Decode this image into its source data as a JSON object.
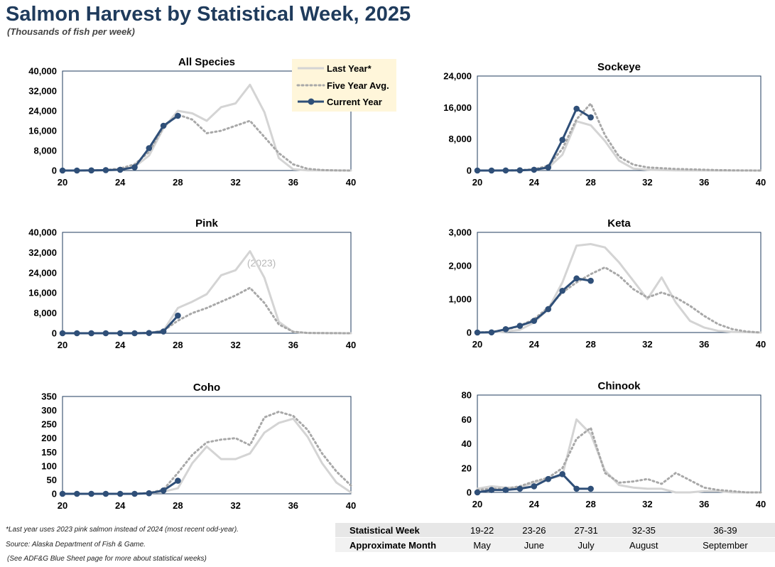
{
  "title": "Salmon Harvest by Statistical Week, 2025",
  "subtitle": "(Thousands of fish per week)",
  "legend": {
    "last_year": "Last Year*",
    "five_year": "Five Year Avg.",
    "current_year": "Current Year"
  },
  "colors": {
    "last_year": "#d4d4d4",
    "five_year": "#a8a8a8",
    "current_year": "#2f4f78",
    "axis": "#1f3b5c",
    "legend_bg": "#fff6da"
  },
  "chart_data": [
    {
      "type": "line",
      "title": "All Species",
      "xlim": [
        20,
        40
      ],
      "ylim": [
        0,
        40000
      ],
      "xticks": [
        "20",
        "24",
        "28",
        "32",
        "36",
        "40"
      ],
      "yticks": [
        "0",
        "8,000",
        "16,000",
        "24,000",
        "32,000",
        "40,000"
      ],
      "series": [
        {
          "name": "Last Year*",
          "x": [
            20,
            21,
            22,
            23,
            24,
            25,
            26,
            27,
            28,
            29,
            30,
            31,
            32,
            33,
            34,
            35,
            36,
            37,
            38,
            39,
            40
          ],
          "values": [
            0,
            0,
            0,
            100,
            400,
            1500,
            6000,
            17000,
            24000,
            23000,
            20000,
            25500,
            27000,
            34500,
            23500,
            5000,
            500,
            100,
            50,
            20,
            0
          ]
        },
        {
          "name": "Five Year Avg.",
          "x": [
            20,
            21,
            22,
            23,
            24,
            25,
            26,
            27,
            28,
            29,
            30,
            31,
            32,
            33,
            34,
            35,
            36,
            37,
            38,
            39,
            40
          ],
          "values": [
            0,
            0,
            0,
            200,
            800,
            2500,
            7500,
            17500,
            22500,
            20500,
            15000,
            16000,
            18000,
            20000,
            13500,
            7000,
            2500,
            700,
            200,
            50,
            0
          ]
        },
        {
          "name": "Current Year",
          "x": [
            20,
            21,
            22,
            23,
            24,
            25,
            26,
            27,
            28
          ],
          "values": [
            0,
            0,
            50,
            150,
            300,
            1300,
            9000,
            18000,
            22000
          ]
        }
      ]
    },
    {
      "type": "line",
      "title": "Sockeye",
      "xlim": [
        20,
        40
      ],
      "ylim": [
        0,
        24000
      ],
      "xticks": [
        "20",
        "24",
        "28",
        "32",
        "36",
        "40"
      ],
      "yticks": [
        "0",
        "8,000",
        "16,000",
        "24,000"
      ],
      "series": [
        {
          "name": "Last Year*",
          "x": [
            20,
            21,
            22,
            23,
            24,
            25,
            26,
            27,
            28,
            29,
            30,
            31,
            32,
            33,
            34,
            35,
            36,
            37,
            38,
            39,
            40
          ],
          "values": [
            0,
            0,
            0,
            50,
            200,
            700,
            4000,
            12500,
            11500,
            7500,
            2500,
            500,
            200,
            100,
            50,
            20,
            10,
            0,
            0,
            0,
            0
          ]
        },
        {
          "name": "Five Year Avg.",
          "x": [
            20,
            21,
            22,
            23,
            24,
            25,
            26,
            27,
            28,
            29,
            30,
            31,
            32,
            33,
            34,
            35,
            36,
            37,
            38,
            39,
            40
          ],
          "values": [
            0,
            0,
            0,
            100,
            300,
            1200,
            5500,
            13000,
            17000,
            9000,
            3500,
            1500,
            800,
            600,
            400,
            300,
            200,
            100,
            50,
            20,
            0
          ]
        },
        {
          "name": "Current Year",
          "x": [
            20,
            21,
            22,
            23,
            24,
            25,
            26,
            27,
            28
          ],
          "values": [
            0,
            0,
            20,
            50,
            200,
            800,
            7800,
            15700,
            13500
          ]
        }
      ]
    },
    {
      "type": "line",
      "title": "Pink",
      "xlim": [
        20,
        40
      ],
      "ylim": [
        0,
        40000
      ],
      "xticks": [
        "20",
        "24",
        "28",
        "32",
        "36",
        "40"
      ],
      "yticks": [
        "0",
        "8,000",
        "16,000",
        "24,000",
        "32,000",
        "40,000"
      ],
      "annotation": "(2023)",
      "series": [
        {
          "name": "Last Year*",
          "x": [
            20,
            21,
            22,
            23,
            24,
            25,
            26,
            27,
            28,
            29,
            30,
            31,
            32,
            33,
            34,
            35,
            36,
            37,
            38,
            39,
            40
          ],
          "values": [
            0,
            0,
            0,
            0,
            0,
            0,
            100,
            1000,
            10000,
            12500,
            15500,
            23000,
            25000,
            32500,
            22000,
            4500,
            500,
            100,
            50,
            20,
            0
          ]
        },
        {
          "name": "Five Year Avg.",
          "x": [
            20,
            21,
            22,
            23,
            24,
            25,
            26,
            27,
            28,
            29,
            30,
            31,
            32,
            33,
            34,
            35,
            36,
            37,
            38,
            39,
            40
          ],
          "values": [
            0,
            0,
            0,
            0,
            0,
            0,
            100,
            1000,
            5000,
            8000,
            10000,
            12500,
            15000,
            18000,
            12000,
            3500,
            600,
            100,
            50,
            20,
            0
          ]
        },
        {
          "name": "Current Year",
          "x": [
            20,
            21,
            22,
            23,
            24,
            25,
            26,
            27,
            28
          ],
          "values": [
            0,
            0,
            0,
            0,
            0,
            0,
            100,
            700,
            7000
          ]
        }
      ]
    },
    {
      "type": "line",
      "title": "Keta",
      "xlim": [
        20,
        40
      ],
      "ylim": [
        0,
        3000
      ],
      "xticks": [
        "20",
        "24",
        "28",
        "32",
        "36",
        "40"
      ],
      "yticks": [
        "0",
        "1,000",
        "2,000",
        "3,000"
      ],
      "series": [
        {
          "name": "Last Year*",
          "x": [
            20,
            21,
            22,
            23,
            24,
            25,
            26,
            27,
            28,
            29,
            30,
            31,
            32,
            33,
            34,
            35,
            36,
            37,
            38,
            39,
            40
          ],
          "values": [
            0,
            10,
            30,
            80,
            300,
            700,
            1500,
            2600,
            2650,
            2550,
            2100,
            1550,
            1000,
            1650,
            900,
            350,
            150,
            50,
            20,
            10,
            0
          ]
        },
        {
          "name": "Five Year Avg.",
          "x": [
            20,
            21,
            22,
            23,
            24,
            25,
            26,
            27,
            28,
            29,
            30,
            31,
            32,
            33,
            34,
            35,
            36,
            37,
            38,
            39,
            40
          ],
          "values": [
            0,
            20,
            80,
            200,
            400,
            750,
            1200,
            1500,
            1750,
            1950,
            1700,
            1300,
            1050,
            1200,
            1050,
            800,
            500,
            250,
            100,
            30,
            0
          ]
        },
        {
          "name": "Current Year",
          "x": [
            20,
            21,
            22,
            23,
            24,
            25,
            26,
            27,
            28
          ],
          "values": [
            0,
            5,
            100,
            200,
            350,
            700,
            1250,
            1620,
            1550
          ]
        }
      ]
    },
    {
      "type": "line",
      "title": "Coho",
      "xlim": [
        20,
        40
      ],
      "ylim": [
        0,
        350
      ],
      "xticks": [
        "20",
        "24",
        "28",
        "32",
        "36",
        "40"
      ],
      "yticks": [
        "0",
        "50",
        "100",
        "150",
        "200",
        "250",
        "300",
        "350"
      ],
      "series": [
        {
          "name": "Last Year*",
          "x": [
            20,
            21,
            22,
            23,
            24,
            25,
            26,
            27,
            28,
            29,
            30,
            31,
            32,
            33,
            34,
            35,
            36,
            37,
            38,
            39,
            40
          ],
          "values": [
            0,
            0,
            0,
            0,
            0,
            0,
            2,
            8,
            20,
            110,
            170,
            125,
            125,
            145,
            220,
            255,
            270,
            205,
            110,
            40,
            5
          ]
        },
        {
          "name": "Five Year Avg.",
          "x": [
            20,
            21,
            22,
            23,
            24,
            25,
            26,
            27,
            28,
            29,
            30,
            31,
            32,
            33,
            34,
            35,
            36,
            37,
            38,
            39,
            40
          ],
          "values": [
            0,
            0,
            0,
            0,
            0,
            0,
            3,
            15,
            75,
            140,
            185,
            195,
            200,
            175,
            275,
            295,
            280,
            230,
            145,
            80,
            30
          ]
        },
        {
          "name": "Current Year",
          "x": [
            20,
            21,
            22,
            23,
            24,
            25,
            26,
            27,
            28
          ],
          "values": [
            0,
            0,
            0,
            0,
            0,
            0,
            2,
            12,
            47
          ]
        }
      ]
    },
    {
      "type": "line",
      "title": "Chinook",
      "xlim": [
        20,
        40
      ],
      "ylim": [
        0,
        80
      ],
      "xticks": [
        "20",
        "24",
        "28",
        "32",
        "36",
        "40"
      ],
      "yticks": [
        "0",
        "20",
        "40",
        "60",
        "80"
      ],
      "series": [
        {
          "name": "Last Year*",
          "x": [
            20,
            21,
            22,
            23,
            24,
            25,
            26,
            27,
            28,
            29,
            30,
            31,
            32,
            33,
            34,
            35,
            36,
            37,
            38,
            39,
            40
          ],
          "values": [
            3,
            5,
            4,
            4,
            8,
            11,
            14,
            60,
            48,
            18,
            6,
            4,
            3,
            3,
            0,
            0,
            1,
            1,
            0,
            0,
            0
          ]
        },
        {
          "name": "Five Year Avg.",
          "x": [
            20,
            21,
            22,
            23,
            24,
            25,
            26,
            27,
            28,
            29,
            30,
            31,
            32,
            33,
            34,
            35,
            36,
            37,
            38,
            39,
            40
          ],
          "values": [
            2,
            3,
            3,
            5,
            9,
            12,
            20,
            44,
            53,
            16,
            8,
            9,
            11,
            7,
            16,
            10,
            4,
            2,
            1,
            0,
            0
          ]
        },
        {
          "name": "Current Year",
          "x": [
            20,
            21,
            22,
            23,
            24,
            25,
            26,
            27,
            28
          ],
          "values": [
            0,
            2,
            2,
            3,
            5,
            11,
            15,
            3,
            3
          ]
        }
      ]
    }
  ],
  "notes": {
    "n1": "*Last year uses 2023 pink salmon instead of 2024 (most recent odd-year).",
    "n2": "Source: Alaska Department of Fish & Game.",
    "n3": "(See ADF&G Blue Sheet page for more about statistical weeks)"
  },
  "footer_table": {
    "week_header": "Statistical Week",
    "month_header": "Approximate Month",
    "weeks": [
      "19-22",
      "23-26",
      "27-31",
      "32-35",
      "36-39"
    ],
    "months": [
      "May",
      "June",
      "July",
      "August",
      "September"
    ]
  }
}
